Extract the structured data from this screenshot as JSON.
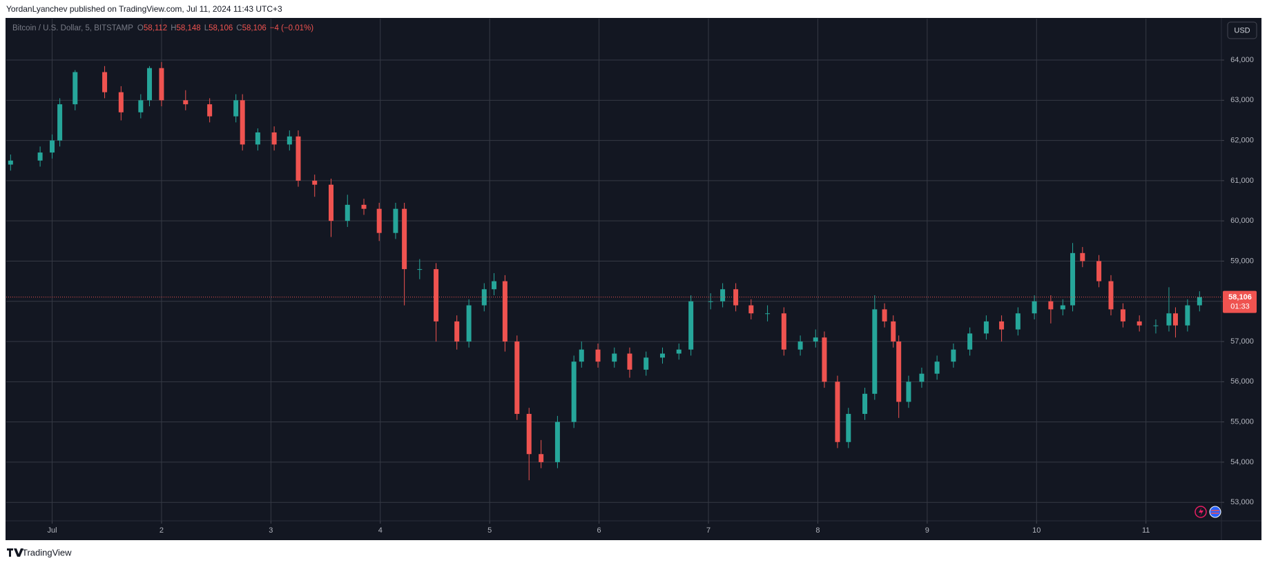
{
  "header": {
    "text": "YordanLyanchev published on TradingView.com, Jul 11, 2024 11:43 UTC+3"
  },
  "footer": {
    "brand": "TradingView"
  },
  "chart_data": {
    "type": "candlestick",
    "legend": {
      "symbol": "Bitcoin / U.S. Dollar, 5, BITSTAMP",
      "items": [
        {
          "key": "O",
          "value": "58,112"
        },
        {
          "key": "H",
          "value": "58,148"
        },
        {
          "key": "L",
          "value": "58,106"
        },
        {
          "key": "C",
          "value": "58,106"
        }
      ],
      "change": "−4 (−0.01%)"
    },
    "currency": "USD",
    "last_price": {
      "value": 58106,
      "label": "58,106"
    },
    "countdown": "01:33",
    "up_color": "#26a69a",
    "down_color": "#ef5350",
    "grid": true,
    "xlim": [
      0.58,
      11.69
    ],
    "ylim": [
      52540,
      65030
    ],
    "xticks": [
      {
        "value": 1,
        "label": "Jul"
      },
      2,
      3,
      4,
      5,
      6,
      7,
      8,
      9,
      10,
      11
    ],
    "yticks": [
      {
        "value": 53000,
        "label": "53,000"
      },
      {
        "value": 54000,
        "label": "54,000"
      },
      {
        "value": 55000,
        "label": "55,000"
      },
      {
        "value": 56000,
        "label": "56,000"
      },
      {
        "value": 57000,
        "label": "57,000"
      },
      {
        "value": 58000,
        "label": "58,000"
      },
      {
        "value": 59000,
        "label": "59,000"
      },
      {
        "value": 60000,
        "label": "60,000"
      },
      {
        "value": 61000,
        "label": "61,000"
      },
      {
        "value": 62000,
        "label": "62,000"
      },
      {
        "value": 63000,
        "label": "63,000"
      },
      {
        "value": 64000,
        "label": "64,000"
      }
    ],
    "x": [
      0.62,
      0.89,
      1.0,
      1.07,
      1.21,
      1.48,
      1.63,
      1.81,
      1.89,
      2.0,
      2.22,
      2.44,
      2.68,
      2.74,
      2.88,
      3.03,
      3.17,
      3.25,
      3.4,
      3.55,
      3.7,
      3.85,
      3.99,
      4.14,
      4.22,
      4.36,
      4.51,
      4.7,
      4.81,
      4.95,
      5.04,
      5.14,
      5.25,
      5.36,
      5.47,
      5.62,
      5.77,
      5.84,
      5.99,
      6.14,
      6.28,
      6.43,
      6.58,
      6.73,
      6.84,
      7.02,
      7.13,
      7.25,
      7.39,
      7.54,
      7.69,
      7.84,
      7.98,
      8.06,
      8.18,
      8.28,
      8.43,
      8.52,
      8.61,
      8.69,
      8.74,
      8.83,
      8.95,
      9.09,
      9.24,
      9.39,
      9.54,
      9.68,
      9.83,
      9.98,
      10.13,
      10.24,
      10.33,
      10.42,
      10.57,
      10.68,
      10.79,
      10.94,
      11.09,
      11.21,
      11.27,
      11.38,
      11.49
    ],
    "open": [
      61400,
      61500,
      61700,
      62000,
      62900,
      63700,
      63200,
      62700,
      63000,
      63800,
      63000,
      62900,
      62600,
      63000,
      61900,
      62200,
      61900,
      62100,
      61000,
      60900,
      60000,
      60400,
      60300,
      59700,
      60300,
      58800,
      58800,
      57500,
      57000,
      57900,
      58300,
      58500,
      57000,
      55200,
      54200,
      54000,
      55000,
      56500,
      56800,
      56500,
      56700,
      56300,
      56600,
      56700,
      56800,
      58000,
      58000,
      58300,
      57900,
      57700,
      57700,
      56800,
      57000,
      57100,
      56000,
      54500,
      55200,
      55700,
      57800,
      57500,
      57000,
      55500,
      56000,
      56200,
      56500,
      56800,
      57200,
      57500,
      57300,
      57700,
      58000,
      57800,
      57900,
      59200,
      59000,
      58500,
      57800,
      57500,
      57400,
      57400,
      57700,
      57400,
      57900
    ],
    "high": [
      61650,
      61850,
      62150,
      63050,
      63750,
      63850,
      63350,
      63150,
      63850,
      63950,
      63250,
      63050,
      63150,
      63150,
      62300,
      62350,
      62250,
      62250,
      61150,
      61050,
      60650,
      60550,
      60450,
      60450,
      60450,
      59050,
      58950,
      57650,
      58050,
      58450,
      58700,
      58650,
      57150,
      55350,
      54550,
      55150,
      56650,
      57000,
      56950,
      56850,
      56850,
      56750,
      56850,
      56950,
      58150,
      58200,
      58450,
      58450,
      58050,
      57900,
      57850,
      57150,
      57300,
      57250,
      56150,
      55350,
      55850,
      58150,
      57950,
      57650,
      57150,
      56150,
      56350,
      56650,
      56950,
      57350,
      57650,
      57650,
      57850,
      58150,
      58150,
      58050,
      59450,
      59350,
      59150,
      58650,
      57950,
      57650,
      57550,
      58350,
      57850,
      58050,
      58250
    ],
    "low": [
      61250,
      61350,
      61550,
      61850,
      62750,
      63050,
      62500,
      62550,
      62850,
      62850,
      62750,
      62450,
      62450,
      61750,
      61750,
      61750,
      61750,
      60850,
      60600,
      59600,
      59850,
      60150,
      59500,
      59550,
      57900,
      58550,
      57000,
      56800,
      56850,
      57750,
      58150,
      56750,
      55050,
      53550,
      53850,
      53850,
      54850,
      56350,
      56350,
      56350,
      56100,
      56150,
      56450,
      56550,
      56650,
      57800,
      57850,
      57750,
      57550,
      57500,
      56650,
      56650,
      56850,
      55850,
      54350,
      54350,
      55050,
      55550,
      57350,
      56850,
      55100,
      55350,
      55850,
      56050,
      56350,
      56650,
      57050,
      57000,
      57150,
      57550,
      57450,
      57650,
      57750,
      58850,
      58350,
      57650,
      57350,
      57250,
      57200,
      57250,
      57100,
      57250,
      57750
    ],
    "close": [
      61500,
      61700,
      62000,
      62900,
      63700,
      63200,
      62700,
      63000,
      63800,
      63000,
      62900,
      62600,
      63000,
      61900,
      62200,
      61900,
      62100,
      61000,
      60900,
      60000,
      60400,
      60300,
      59700,
      60300,
      58800,
      58800,
      57500,
      57000,
      57900,
      58300,
      58500,
      57000,
      55200,
      54200,
      54000,
      55000,
      56500,
      56800,
      56500,
      56700,
      56300,
      56600,
      56700,
      56800,
      58000,
      58000,
      58300,
      57900,
      57700,
      57700,
      56800,
      57000,
      57100,
      56000,
      54500,
      55200,
      55700,
      57800,
      57500,
      57000,
      55500,
      56000,
      56200,
      56500,
      56800,
      57200,
      57500,
      57300,
      57700,
      58000,
      57800,
      57900,
      59200,
      59000,
      58500,
      57800,
      57500,
      57400,
      57400,
      57700,
      57400,
      57900,
      58106
    ]
  }
}
